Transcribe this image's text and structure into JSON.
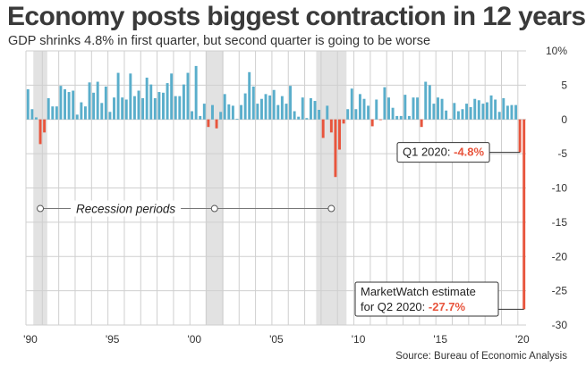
{
  "title": "Economy posts biggest contraction in 12 years",
  "subtitle": "GDP shrinks 4.8% in first quarter, but second quarter is going to be worse",
  "source": "Source: Bureau of Economic Analysis",
  "colors": {
    "positive": "#5aaecb",
    "negative": "#e8553d",
    "recession": "#e2e2e2",
    "grid": "#cfcfcf"
  },
  "chart_data": {
    "type": "bar",
    "title": "Economy posts biggest contraction in 12 years",
    "subtitle": "GDP shrinks 4.8% in first quarter, but second quarter is going to be worse",
    "xlabel": "",
    "ylabel": "",
    "ylim": [
      -30,
      10
    ],
    "yticks": [
      10,
      5,
      0,
      -5,
      -10,
      -15,
      -20,
      -25,
      -30
    ],
    "ytick_labels": [
      "10%",
      "5",
      "0",
      "-5",
      "-10",
      "-15",
      "-20",
      "-25",
      "-30"
    ],
    "xtick_years": [
      1990,
      1995,
      2000,
      2005,
      2010,
      2015,
      2020
    ],
    "xtick_labels": [
      "'90",
      "'95",
      "'00",
      "'05",
      "'10",
      "'15",
      "'20"
    ],
    "grid": true,
    "start_quarter": "1990 Q1",
    "end_quarter": "2020 Q2",
    "values": [
      4.4,
      1.5,
      0.3,
      -3.6,
      -1.9,
      3.1,
      1.9,
      1.9,
      4.9,
      4.4,
      4.0,
      4.2,
      0.7,
      2.5,
      1.9,
      5.4,
      3.9,
      5.5,
      2.4,
      4.8,
      1.1,
      3.2,
      6.8,
      3.2,
      2.9,
      6.7,
      3.4,
      4.2,
      3.1,
      6.1,
      5.1,
      3.1,
      4.0,
      3.9,
      5.3,
      6.7,
      3.4,
      3.4,
      5.1,
      6.8,
      1.2,
      7.8,
      0.5,
      2.3,
      -1.1,
      2.1,
      -1.3,
      1.1,
      3.7,
      2.2,
      2.0,
      0.1,
      2.1,
      3.8,
      6.9,
      4.8,
      2.3,
      3.0,
      3.7,
      3.5,
      4.3,
      2.1,
      3.4,
      2.3,
      4.9,
      1.2,
      0.4,
      3.2,
      0.2,
      3.1,
      2.7,
      1.4,
      -2.7,
      2.0,
      -1.9,
      -8.4,
      -4.4,
      -0.6,
      1.5,
      4.5,
      1.5,
      3.7,
      3.0,
      2.0,
      -1.0,
      2.9,
      -0.1,
      4.7,
      3.2,
      1.7,
      0.5,
      0.5,
      3.6,
      0.5,
      3.2,
      3.2,
      -1.1,
      5.5,
      5.0,
      2.3,
      3.2,
      3.0,
      1.3,
      0.1,
      2.4,
      1.2,
      1.5,
      2.3,
      1.8,
      3.0,
      2.8,
      2.3,
      2.5,
      3.5,
      2.9,
      1.1,
      3.1,
      2.0,
      2.1,
      2.1,
      -4.8,
      -27.7
    ],
    "recessions": [
      {
        "start": "1990 Q3",
        "end": "1991 Q1"
      },
      {
        "start": "2001 Q1",
        "end": "2001 Q4"
      },
      {
        "start": "2007 Q4",
        "end": "2009 Q2"
      }
    ],
    "recession_label": "Recession periods",
    "annotations": [
      {
        "quarter": "2020 Q1",
        "label": "Q1 2020: ",
        "value_text": "-4.8%"
      },
      {
        "quarter": "2020 Q2",
        "line1": "MarketWatch estimate",
        "line2": "for Q2 2020: ",
        "value_text": "-27.7%"
      }
    ]
  }
}
